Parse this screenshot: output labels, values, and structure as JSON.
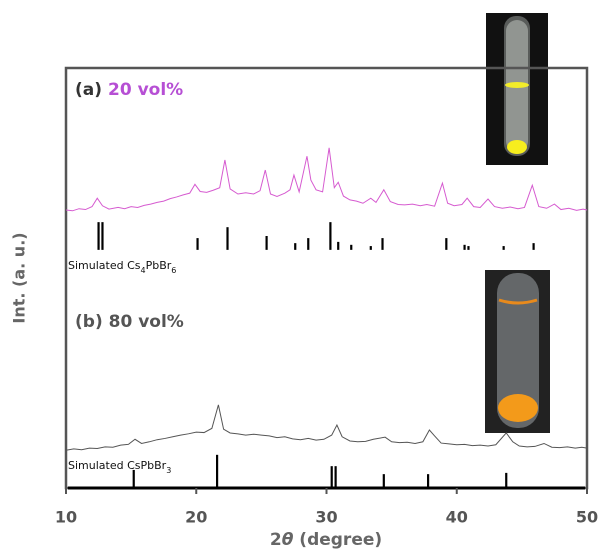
{
  "chart_data": {
    "type": "xrd",
    "x_label": [
      "2",
      "θ",
      " (degree)"
    ],
    "y_label": "Int. (a. u.)",
    "xlim": [
      10,
      50
    ],
    "xticks": [
      10,
      20,
      30,
      40,
      50
    ],
    "ylim": [
      0,
      100
    ],
    "series": [
      {
        "kind": "line",
        "label": [
          "(a)",
          "20 vol%"
        ],
        "color": "#d65bd0",
        "label_color": "#b64fd4",
        "x": [
          10,
          10.5,
          11,
          11.5,
          12,
          12.4,
          12.8,
          13.3,
          14,
          14.5,
          15,
          15.5,
          16,
          16.5,
          17,
          17.5,
          18,
          18.5,
          19,
          19.5,
          19.9,
          20.3,
          20.8,
          21.3,
          21.8,
          22.2,
          22.6,
          23.2,
          23.8,
          24.4,
          24.9,
          25.3,
          25.7,
          26.2,
          26.8,
          27.2,
          27.5,
          27.9,
          28.5,
          28.8,
          29.2,
          29.7,
          30.2,
          30.6,
          30.9,
          31.3,
          31.8,
          32.3,
          32.8,
          33.4,
          33.8,
          34.4,
          34.9,
          35.5,
          36,
          36.6,
          37.2,
          37.7,
          38.3,
          38.9,
          39.3,
          39.8,
          40.4,
          40.8,
          41.3,
          41.8,
          42.4,
          42.9,
          43.5,
          44.1,
          44.7,
          45.2,
          45.8,
          46.3,
          46.9,
          47.5,
          48,
          48.6,
          49.2,
          49.7,
          50
        ],
        "values": [
          66.2,
          66.0,
          66.5,
          66.3,
          67.0,
          69.0,
          67.2,
          66.4,
          66.8,
          66.5,
          67.0,
          66.8,
          67.3,
          67.6,
          68.0,
          68.3,
          68.9,
          69.3,
          69.8,
          70.2,
          72.3,
          70.6,
          70.4,
          70.9,
          71.5,
          78.1,
          71.2,
          70.0,
          70.3,
          70.0,
          70.8,
          75.7,
          70.0,
          69.4,
          70.2,
          71.0,
          74.5,
          70.5,
          79.0,
          73.3,
          71.0,
          70.5,
          81.0,
          71.5,
          72.8,
          69.5,
          68.6,
          68.3,
          67.8,
          69.0,
          68.0,
          71.0,
          68.2,
          67.5,
          67.4,
          67.6,
          67.2,
          67.5,
          67.1,
          72.6,
          67.8,
          67.2,
          67.5,
          69.0,
          67.0,
          66.8,
          68.8,
          67.0,
          66.6,
          66.9,
          66.5,
          66.8,
          72.1,
          67.0,
          66.6,
          67.6,
          66.3,
          66.6,
          66.1,
          66.4,
          66.2
        ]
      },
      {
        "kind": "stick",
        "label": [
          "Simulated Cs",
          "4",
          "PbBr",
          "6"
        ],
        "color": "#000000",
        "base": 56.7,
        "x": [
          12.5,
          12.8,
          20.1,
          22.4,
          25.4,
          27.6,
          28.6,
          30.3,
          30.9,
          31.9,
          33.4,
          34.3,
          39.2,
          40.6,
          40.9,
          43.6,
          45.9
        ],
        "values": [
          63.3,
          63.3,
          59.5,
          62.1,
          60.0,
          58.3,
          59.5,
          63.3,
          58.6,
          57.9,
          57.6,
          59.5,
          59.5,
          57.9,
          57.6,
          57.6,
          58.3
        ]
      },
      {
        "kind": "line",
        "label": [
          "(b) 80 vol%"
        ],
        "color": "#555555",
        "label_color": "#555555",
        "x": [
          10,
          10.6,
          11.2,
          11.8,
          12.4,
          13,
          13.6,
          14.2,
          14.8,
          15.3,
          15.8,
          16.4,
          17,
          17.6,
          18.2,
          18.8,
          19.4,
          20,
          20.6,
          21.2,
          21.7,
          22.1,
          22.6,
          23.2,
          23.8,
          24.4,
          25,
          25.6,
          26.2,
          26.8,
          27.4,
          28,
          28.6,
          29.2,
          29.8,
          30.4,
          30.8,
          31.2,
          31.8,
          32.4,
          33,
          33.6,
          34.5,
          35,
          35.6,
          36.2,
          36.8,
          37.4,
          37.9,
          38.3,
          38.8,
          39.4,
          40,
          40.6,
          41.2,
          41.8,
          42.4,
          43,
          43.8,
          44.3,
          44.8,
          45.4,
          46,
          46.7,
          47.3,
          47.9,
          48.5,
          49.1,
          49.6,
          50
        ],
        "values": [
          9.0,
          9.3,
          9.1,
          9.5,
          9.4,
          9.8,
          9.7,
          10.2,
          10.4,
          11.6,
          10.6,
          11.0,
          11.5,
          11.8,
          12.2,
          12.6,
          12.9,
          13.3,
          13.2,
          14.2,
          19.8,
          14.0,
          13.1,
          12.9,
          12.6,
          12.8,
          12.6,
          12.4,
          12.0,
          12.2,
          11.7,
          11.5,
          11.8,
          11.4,
          11.6,
          12.6,
          15.0,
          12.2,
          11.2,
          11.0,
          11.1,
          11.6,
          12.1,
          11.0,
          10.8,
          10.9,
          10.6,
          11.0,
          13.8,
          12.4,
          10.7,
          10.5,
          10.3,
          10.4,
          10.1,
          10.2,
          10.0,
          10.3,
          13.1,
          11.0,
          10.0,
          9.8,
          9.9,
          10.6,
          9.7,
          9.6,
          9.8,
          9.5,
          9.7,
          9.5
        ]
      },
      {
        "kind": "stick",
        "label": [
          "Simulated CsPbBr",
          "3"
        ],
        "color": "#000000",
        "base": 0,
        "x": [
          15.2,
          21.6,
          30.4,
          30.7,
          34.4,
          37.8,
          43.8
        ],
        "values": [
          4.3,
          7.9,
          5.2,
          5.2,
          3.3,
          3.3,
          3.6
        ]
      }
    ]
  }
}
